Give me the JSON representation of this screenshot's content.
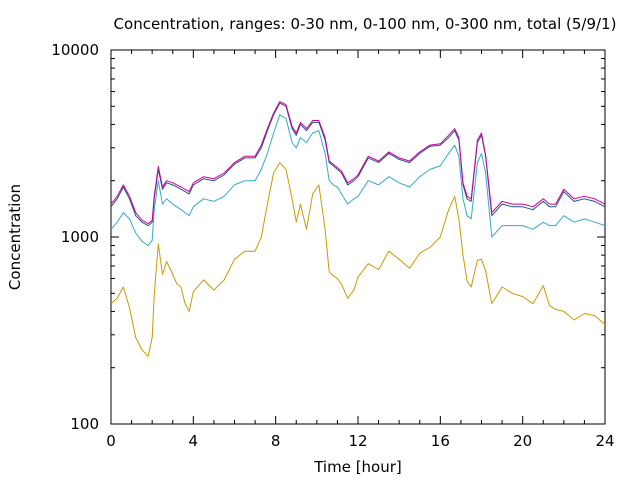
{
  "chart_data": {
    "type": "line",
    "title": "Concentration, ranges: 0-30 nm, 0-100 nm, 0-300 nm, total (5/9/1)",
    "xlabel": "Time [hour]",
    "ylabel": "Concentration",
    "xlim": [
      0,
      24
    ],
    "ylim": [
      100,
      10000
    ],
    "yscale": "log",
    "x_ticks": [
      "0",
      "4",
      "8",
      "12",
      "16",
      "20",
      "24"
    ],
    "y_ticks": [
      "100",
      "1000",
      "10000"
    ],
    "grid": false,
    "series": [
      {
        "color": "#cc9900",
        "x": [
          0,
          0.3,
          0.6,
          0.9,
          1.2,
          1.5,
          1.8,
          2.0,
          2.1,
          2.3,
          2.5,
          2.7,
          3.0,
          3.2,
          3.4,
          3.6,
          3.8,
          4.0,
          4.5,
          5.0,
          5.5,
          6.0,
          6.5,
          7.0,
          7.3,
          7.6,
          7.9,
          8.2,
          8.5,
          8.8,
          9.0,
          9.2,
          9.5,
          9.8,
          10.1,
          10.4,
          10.6,
          10.8,
          11.0,
          11.2,
          11.5,
          11.8,
          12.0,
          12.5,
          13.0,
          13.5,
          14.0,
          14.5,
          15.0,
          15.5,
          16.0,
          16.4,
          16.7,
          16.9,
          17.1,
          17.3,
          17.5,
          17.8,
          18.0,
          18.2,
          18.5,
          19.0,
          19.5,
          20.0,
          20.5,
          21.0,
          21.3,
          21.6,
          22.0,
          22.5,
          23.0,
          23.5,
          24.0
        ],
        "y": [
          440,
          470,
          540,
          420,
          290,
          250,
          230,
          290,
          490,
          920,
          630,
          740,
          630,
          560,
          540,
          440,
          400,
          510,
          590,
          520,
          590,
          760,
          840,
          840,
          1000,
          1500,
          2200,
          2500,
          2300,
          1600,
          1200,
          1500,
          1100,
          1700,
          1900,
          1100,
          650,
          620,
          600,
          560,
          470,
          520,
          610,
          720,
          670,
          840,
          760,
          680,
          820,
          880,
          1000,
          1400,
          1650,
          1250,
          800,
          580,
          540,
          750,
          760,
          660,
          440,
          540,
          500,
          480,
          440,
          550,
          430,
          410,
          400,
          360,
          390,
          380,
          340
        ]
      },
      {
        "color": "#33aacc",
        "x": [
          0,
          0.3,
          0.6,
          0.9,
          1.2,
          1.5,
          1.8,
          2.0,
          2.1,
          2.3,
          2.5,
          2.7,
          3.0,
          3.2,
          3.4,
          3.6,
          3.8,
          4.0,
          4.5,
          5.0,
          5.5,
          6.0,
          6.5,
          7.0,
          7.3,
          7.6,
          7.9,
          8.2,
          8.5,
          8.8,
          9.0,
          9.2,
          9.5,
          9.8,
          10.1,
          10.4,
          10.6,
          10.8,
          11.0,
          11.2,
          11.5,
          11.8,
          12.0,
          12.5,
          13.0,
          13.5,
          14.0,
          14.5,
          15.0,
          15.5,
          16.0,
          16.4,
          16.7,
          16.9,
          17.1,
          17.3,
          17.5,
          17.8,
          18.0,
          18.2,
          18.5,
          19.0,
          19.5,
          20.0,
          20.5,
          21.0,
          21.3,
          21.6,
          22.0,
          22.5,
          23.0,
          23.5,
          24.0
        ],
        "y": [
          1100,
          1200,
          1350,
          1250,
          1050,
          950,
          900,
          960,
          1400,
          2000,
          1500,
          1600,
          1500,
          1450,
          1400,
          1350,
          1300,
          1450,
          1600,
          1550,
          1650,
          1900,
          2000,
          2000,
          2300,
          2800,
          3600,
          4500,
          4300,
          3200,
          3000,
          3400,
          3200,
          3600,
          3700,
          2800,
          2000,
          1900,
          1850,
          1700,
          1500,
          1600,
          1650,
          2000,
          1900,
          2100,
          1950,
          1850,
          2100,
          2300,
          2400,
          2800,
          3100,
          2700,
          1600,
          1300,
          1250,
          2500,
          2800,
          2200,
          1000,
          1150,
          1150,
          1150,
          1100,
          1200,
          1150,
          1150,
          1300,
          1200,
          1250,
          1200,
          1150
        ]
      },
      {
        "color": "#225588",
        "x": [
          0,
          0.3,
          0.6,
          0.9,
          1.2,
          1.5,
          1.8,
          2.0,
          2.1,
          2.3,
          2.5,
          2.7,
          3.0,
          3.2,
          3.4,
          3.6,
          3.8,
          4.0,
          4.5,
          5.0,
          5.5,
          6.0,
          6.5,
          7.0,
          7.3,
          7.6,
          7.9,
          8.2,
          8.5,
          8.8,
          9.0,
          9.2,
          9.5,
          9.8,
          10.1,
          10.4,
          10.6,
          10.8,
          11.0,
          11.2,
          11.5,
          11.8,
          12.0,
          12.5,
          13.0,
          13.5,
          14.0,
          14.5,
          15.0,
          15.5,
          16.0,
          16.4,
          16.7,
          16.9,
          17.1,
          17.3,
          17.5,
          17.8,
          18.0,
          18.2,
          18.5,
          19.0,
          19.5,
          20.0,
          20.5,
          21.0,
          21.3,
          21.6,
          22.0,
          22.5,
          23.0,
          23.5,
          24.0
        ],
        "y": [
          1450,
          1600,
          1850,
          1600,
          1300,
          1200,
          1150,
          1200,
          1600,
          2300,
          1800,
          1950,
          1900,
          1850,
          1800,
          1750,
          1700,
          1900,
          2050,
          2000,
          2150,
          2450,
          2650,
          2650,
          3000,
          3700,
          4500,
          5200,
          5000,
          3800,
          3500,
          4000,
          3700,
          4100,
          4100,
          3300,
          2500,
          2400,
          2300,
          2200,
          1900,
          2000,
          2100,
          2650,
          2500,
          2800,
          2600,
          2500,
          2800,
          3050,
          3100,
          3400,
          3700,
          3300,
          1900,
          1600,
          1550,
          3200,
          3500,
          2700,
          1300,
          1500,
          1450,
          1450,
          1400,
          1550,
          1450,
          1450,
          1750,
          1550,
          1600,
          1550,
          1450
        ]
      },
      {
        "color": "#cc0099",
        "x": [
          0,
          0.3,
          0.6,
          0.9,
          1.2,
          1.5,
          1.8,
          2.0,
          2.1,
          2.3,
          2.5,
          2.7,
          3.0,
          3.2,
          3.4,
          3.6,
          3.8,
          4.0,
          4.5,
          5.0,
          5.5,
          6.0,
          6.5,
          7.0,
          7.3,
          7.6,
          7.9,
          8.2,
          8.5,
          8.8,
          9.0,
          9.2,
          9.5,
          9.8,
          10.1,
          10.4,
          10.6,
          10.8,
          11.0,
          11.2,
          11.5,
          11.8,
          12.0,
          12.5,
          13.0,
          13.5,
          14.0,
          14.5,
          15.0,
          15.5,
          16.0,
          16.4,
          16.7,
          16.9,
          17.1,
          17.3,
          17.5,
          17.8,
          18.0,
          18.2,
          18.5,
          19.0,
          19.5,
          20.0,
          20.5,
          21.0,
          21.3,
          21.6,
          22.0,
          22.5,
          23.0,
          23.5,
          24.0
        ],
        "y": [
          1500,
          1650,
          1900,
          1650,
          1350,
          1230,
          1180,
          1230,
          1650,
          2380,
          1850,
          2000,
          1950,
          1900,
          1850,
          1800,
          1750,
          1950,
          2100,
          2050,
          2200,
          2500,
          2700,
          2700,
          3100,
          3800,
          4600,
          5300,
          5100,
          3900,
          3600,
          4100,
          3800,
          4200,
          4200,
          3400,
          2550,
          2450,
          2350,
          2250,
          1950,
          2050,
          2150,
          2700,
          2550,
          2850,
          2650,
          2550,
          2850,
          3100,
          3150,
          3500,
          3800,
          3400,
          1950,
          1650,
          1600,
          3300,
          3600,
          2750,
          1350,
          1550,
          1500,
          1500,
          1450,
          1600,
          1500,
          1500,
          1800,
          1600,
          1650,
          1600,
          1500
        ]
      }
    ]
  }
}
